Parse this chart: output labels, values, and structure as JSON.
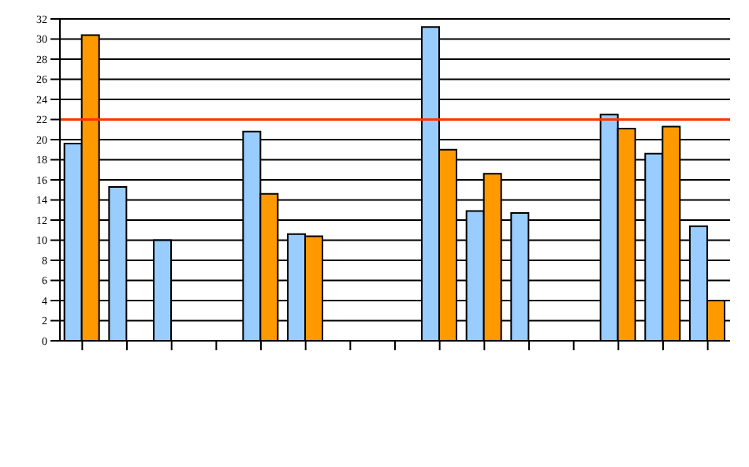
{
  "chart_data": {
    "type": "bar",
    "categories": [
      null,
      null,
      null,
      null,
      null,
      null,
      null,
      null,
      null,
      null,
      null,
      null,
      null,
      null,
      null
    ],
    "series": [
      {
        "color": "#99ccff",
        "values": [
          19.6,
          15.3,
          10.0,
          null,
          20.8,
          10.6,
          null,
          null,
          31.2,
          12.9,
          12.7,
          null,
          22.5,
          18.6,
          11.4
        ]
      },
      {
        "color": "#ff9900",
        "values": [
          30.4,
          null,
          null,
          null,
          14.6,
          10.4,
          null,
          null,
          19.0,
          16.6,
          null,
          null,
          21.1,
          21.3,
          4.0
        ]
      }
    ],
    "ylim": [
      0,
      32
    ],
    "yticks": [
      0,
      2,
      4,
      6,
      8,
      10,
      12,
      14,
      16,
      18,
      20,
      22,
      24,
      26,
      28,
      30,
      32
    ],
    "grid": "y",
    "ref_lines": [
      {
        "axis": "y",
        "value": 22,
        "color": "#ff3300"
      }
    ]
  }
}
